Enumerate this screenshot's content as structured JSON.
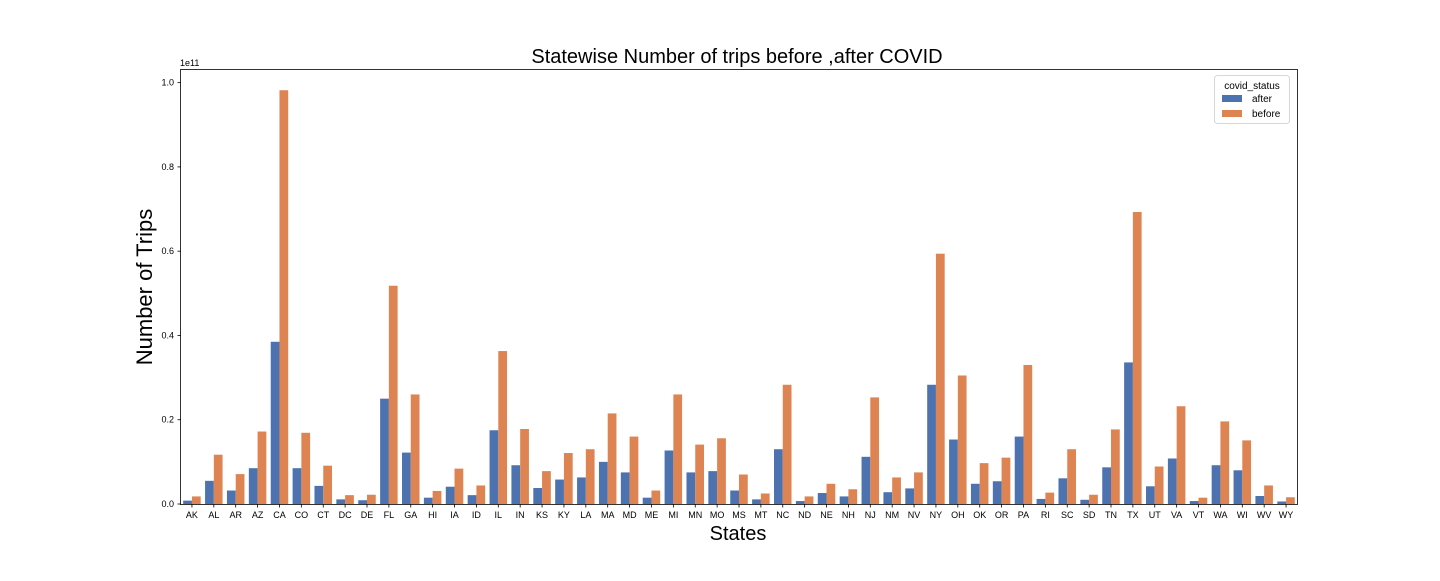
{
  "chart_data": {
    "type": "bar",
    "title": "Statewise Number of trips before ,after COVID",
    "xlabel": "States",
    "ylabel": "Number of Trips",
    "y_multiplier_label": "1e11",
    "ylim": [
      0,
      1.03
    ],
    "yticks": [
      0.0,
      0.2,
      0.4,
      0.6,
      0.8,
      1.0
    ],
    "ytick_labels": [
      "0.0",
      "0.2",
      "0.4",
      "0.6",
      "0.8",
      "1.0"
    ],
    "grid": false,
    "legend": {
      "title": "covid_status",
      "placement": "top-right"
    },
    "categories": [
      "AK",
      "AL",
      "AR",
      "AZ",
      "CA",
      "CO",
      "CT",
      "DC",
      "DE",
      "FL",
      "GA",
      "HI",
      "IA",
      "ID",
      "IL",
      "IN",
      "KS",
      "KY",
      "LA",
      "MA",
      "MD",
      "ME",
      "MI",
      "MN",
      "MO",
      "MS",
      "MT",
      "NC",
      "ND",
      "NE",
      "NH",
      "NJ",
      "NM",
      "NV",
      "NY",
      "OH",
      "OK",
      "OR",
      "PA",
      "RI",
      "SC",
      "SD",
      "TN",
      "TX",
      "UT",
      "VA",
      "VT",
      "WA",
      "WI",
      "WV",
      "WY"
    ],
    "series": [
      {
        "name": "after",
        "color": "#4c72b0",
        "values": [
          0.008,
          0.055,
          0.032,
          0.085,
          0.385,
          0.085,
          0.043,
          0.011,
          0.009,
          0.25,
          0.122,
          0.015,
          0.041,
          0.021,
          0.175,
          0.092,
          0.038,
          0.058,
          0.063,
          0.1,
          0.075,
          0.015,
          0.127,
          0.075,
          0.078,
          0.032,
          0.011,
          0.13,
          0.007,
          0.026,
          0.018,
          0.112,
          0.028,
          0.037,
          0.283,
          0.153,
          0.048,
          0.054,
          0.16,
          0.012,
          0.061,
          0.01,
          0.087,
          0.336,
          0.042,
          0.108,
          0.007,
          0.092,
          0.08,
          0.019,
          0.006
        ]
      },
      {
        "name": "before",
        "color": "#dd8452",
        "values": [
          0.018,
          0.117,
          0.071,
          0.172,
          0.982,
          0.169,
          0.091,
          0.021,
          0.022,
          0.518,
          0.26,
          0.031,
          0.084,
          0.044,
          0.363,
          0.178,
          0.078,
          0.121,
          0.13,
          0.215,
          0.16,
          0.032,
          0.26,
          0.141,
          0.156,
          0.07,
          0.025,
          0.283,
          0.018,
          0.048,
          0.035,
          0.253,
          0.063,
          0.075,
          0.594,
          0.305,
          0.097,
          0.11,
          0.33,
          0.027,
          0.13,
          0.022,
          0.177,
          0.693,
          0.089,
          0.232,
          0.015,
          0.196,
          0.151,
          0.044,
          0.016
        ]
      }
    ]
  }
}
